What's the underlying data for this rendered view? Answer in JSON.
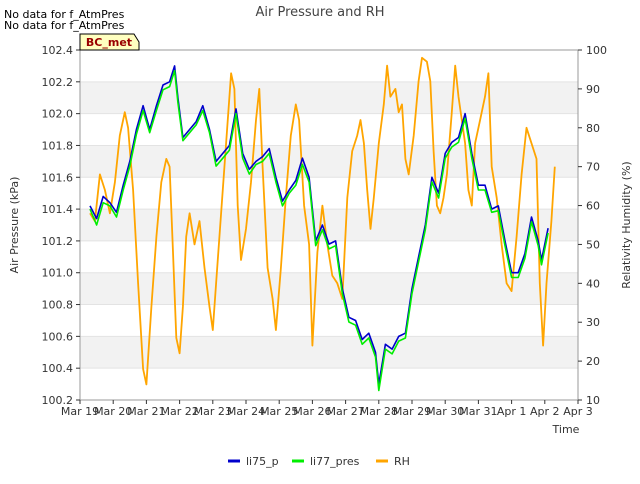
{
  "no_data_notes": [
    "No data for f_AtmPres",
    "No data for f_AtmPres"
  ],
  "station_badge": "BC_met",
  "chart_data": {
    "type": "line",
    "title": "Air Pressure and RH",
    "xlabel": "Time",
    "ylabel_left": "Air Pressure (kPa)",
    "ylabel_right": "Relativity Humidity (%)",
    "x_range": [
      0,
      15
    ],
    "ylim_left": [
      100.2,
      102.4
    ],
    "ylim_right": [
      10,
      100
    ],
    "x_ticks": [
      {
        "label": "Mar 19",
        "x": 0
      },
      {
        "label": "Mar 20",
        "x": 1
      },
      {
        "label": "Mar 21",
        "x": 2
      },
      {
        "label": "Mar 22",
        "x": 3
      },
      {
        "label": "Mar 23",
        "x": 4
      },
      {
        "label": "Mar 24",
        "x": 5
      },
      {
        "label": "Mar 25",
        "x": 6
      },
      {
        "label": "Mar 26",
        "x": 7
      },
      {
        "label": "Mar 27",
        "x": 8
      },
      {
        "label": "Mar 28",
        "x": 9
      },
      {
        "label": "Mar 29",
        "x": 10
      },
      {
        "label": "Mar 30",
        "x": 11
      },
      {
        "label": "Mar 31",
        "x": 12
      },
      {
        "label": "Apr 1",
        "x": 13
      },
      {
        "label": "Apr 2",
        "x": 14
      },
      {
        "label": "Apr 3",
        "x": 15
      }
    ],
    "y_ticks_left": [
      "100.2",
      "100.4",
      "100.6",
      "100.8",
      "101.0",
      "101.2",
      "101.4",
      "101.6",
      "101.8",
      "102.0",
      "102.2",
      "102.4"
    ],
    "y_ticks_right": [
      "10",
      "20",
      "30",
      "40",
      "50",
      "60",
      "70",
      "80",
      "90",
      "100"
    ],
    "grid": "horizontal bands",
    "legend_placement": "bottom-center",
    "colors": {
      "li75_p": "#0000cc",
      "li77_pres": "#00ee00",
      "RH": "#ffa500",
      "band": "#f2f2f2"
    },
    "series": [
      {
        "name": "li75_p",
        "axis": "left",
        "points": [
          [
            0.3,
            101.42
          ],
          [
            0.5,
            101.34
          ],
          [
            0.7,
            101.48
          ],
          [
            0.9,
            101.44
          ],
          [
            1.1,
            101.38
          ],
          [
            1.3,
            101.55
          ],
          [
            1.5,
            101.7
          ],
          [
            1.7,
            101.9
          ],
          [
            1.9,
            102.05
          ],
          [
            2.1,
            101.9
          ],
          [
            2.3,
            102.05
          ],
          [
            2.5,
            102.18
          ],
          [
            2.7,
            102.2
          ],
          [
            2.85,
            102.3
          ],
          [
            2.95,
            102.1
          ],
          [
            3.1,
            101.85
          ],
          [
            3.3,
            101.9
          ],
          [
            3.5,
            101.95
          ],
          [
            3.7,
            102.05
          ],
          [
            3.9,
            101.9
          ],
          [
            4.1,
            101.7
          ],
          [
            4.3,
            101.75
          ],
          [
            4.5,
            101.8
          ],
          [
            4.7,
            102.03
          ],
          [
            4.9,
            101.75
          ],
          [
            5.1,
            101.65
          ],
          [
            5.3,
            101.7
          ],
          [
            5.5,
            101.73
          ],
          [
            5.7,
            101.78
          ],
          [
            5.9,
            101.6
          ],
          [
            6.1,
            101.45
          ],
          [
            6.3,
            101.52
          ],
          [
            6.5,
            101.58
          ],
          [
            6.7,
            101.72
          ],
          [
            6.9,
            101.6
          ],
          [
            7.1,
            101.2
          ],
          [
            7.3,
            101.3
          ],
          [
            7.5,
            101.18
          ],
          [
            7.7,
            101.2
          ],
          [
            7.9,
            100.9
          ],
          [
            8.1,
            100.72
          ],
          [
            8.3,
            100.7
          ],
          [
            8.5,
            100.58
          ],
          [
            8.7,
            100.62
          ],
          [
            8.9,
            100.5
          ],
          [
            9.0,
            100.3
          ],
          [
            9.2,
            100.55
          ],
          [
            9.4,
            100.52
          ],
          [
            9.6,
            100.6
          ],
          [
            9.8,
            100.62
          ],
          [
            10.0,
            100.9
          ],
          [
            10.2,
            101.1
          ],
          [
            10.4,
            101.3
          ],
          [
            10.6,
            101.6
          ],
          [
            10.8,
            101.5
          ],
          [
            11.0,
            101.75
          ],
          [
            11.2,
            101.82
          ],
          [
            11.4,
            101.85
          ],
          [
            11.6,
            102.0
          ],
          [
            11.8,
            101.75
          ],
          [
            12.0,
            101.55
          ],
          [
            12.2,
            101.55
          ],
          [
            12.4,
            101.4
          ],
          [
            12.6,
            101.42
          ],
          [
            12.8,
            101.2
          ],
          [
            13.0,
            101.0
          ],
          [
            13.2,
            101.0
          ],
          [
            13.4,
            101.12
          ],
          [
            13.6,
            101.35
          ],
          [
            13.8,
            101.2
          ],
          [
            13.9,
            101.08
          ],
          [
            14.1,
            101.28
          ]
        ]
      },
      {
        "name": "li77_pres",
        "axis": "left",
        "points": [
          [
            0.3,
            101.4
          ],
          [
            0.5,
            101.3
          ],
          [
            0.7,
            101.44
          ],
          [
            0.9,
            101.42
          ],
          [
            1.1,
            101.35
          ],
          [
            1.3,
            101.52
          ],
          [
            1.5,
            101.67
          ],
          [
            1.7,
            101.87
          ],
          [
            1.9,
            102.02
          ],
          [
            2.1,
            101.88
          ],
          [
            2.3,
            102.02
          ],
          [
            2.5,
            102.15
          ],
          [
            2.7,
            102.17
          ],
          [
            2.85,
            102.27
          ],
          [
            2.95,
            102.07
          ],
          [
            3.1,
            101.83
          ],
          [
            3.3,
            101.88
          ],
          [
            3.5,
            101.93
          ],
          [
            3.7,
            102.02
          ],
          [
            3.9,
            101.88
          ],
          [
            4.1,
            101.67
          ],
          [
            4.3,
            101.72
          ],
          [
            4.5,
            101.77
          ],
          [
            4.7,
            102.0
          ],
          [
            4.9,
            101.72
          ],
          [
            5.1,
            101.62
          ],
          [
            5.3,
            101.68
          ],
          [
            5.5,
            101.7
          ],
          [
            5.7,
            101.75
          ],
          [
            5.9,
            101.57
          ],
          [
            6.1,
            101.42
          ],
          [
            6.3,
            101.5
          ],
          [
            6.5,
            101.55
          ],
          [
            6.7,
            101.68
          ],
          [
            6.9,
            101.57
          ],
          [
            7.1,
            101.17
          ],
          [
            7.3,
            101.27
          ],
          [
            7.5,
            101.15
          ],
          [
            7.7,
            101.17
          ],
          [
            7.9,
            100.87
          ],
          [
            8.1,
            100.69
          ],
          [
            8.3,
            100.67
          ],
          [
            8.5,
            100.55
          ],
          [
            8.7,
            100.59
          ],
          [
            8.9,
            100.47
          ],
          [
            9.0,
            100.26
          ],
          [
            9.2,
            100.52
          ],
          [
            9.4,
            100.49
          ],
          [
            9.6,
            100.57
          ],
          [
            9.8,
            100.59
          ],
          [
            10.0,
            100.87
          ],
          [
            10.2,
            101.07
          ],
          [
            10.4,
            101.27
          ],
          [
            10.6,
            101.57
          ],
          [
            10.8,
            101.47
          ],
          [
            11.0,
            101.72
          ],
          [
            11.2,
            101.79
          ],
          [
            11.4,
            101.82
          ],
          [
            11.6,
            101.97
          ],
          [
            11.8,
            101.72
          ],
          [
            12.0,
            101.52
          ],
          [
            12.2,
            101.52
          ],
          [
            12.4,
            101.38
          ],
          [
            12.6,
            101.39
          ],
          [
            12.8,
            101.17
          ],
          [
            13.0,
            100.97
          ],
          [
            13.2,
            100.97
          ],
          [
            13.4,
            101.09
          ],
          [
            13.6,
            101.32
          ],
          [
            13.8,
            101.17
          ],
          [
            13.9,
            101.05
          ],
          [
            14.1,
            101.25
          ]
        ]
      },
      {
        "name": "RH",
        "axis": "right",
        "points": [
          [
            0.3,
            58
          ],
          [
            0.45,
            56
          ],
          [
            0.6,
            68
          ],
          [
            0.75,
            64
          ],
          [
            0.9,
            58
          ],
          [
            1.05,
            66
          ],
          [
            1.2,
            78
          ],
          [
            1.35,
            84
          ],
          [
            1.45,
            80
          ],
          [
            1.6,
            64
          ],
          [
            1.75,
            40
          ],
          [
            1.9,
            18
          ],
          [
            2.0,
            14
          ],
          [
            2.15,
            34
          ],
          [
            2.3,
            52
          ],
          [
            2.45,
            66
          ],
          [
            2.6,
            72
          ],
          [
            2.7,
            70
          ],
          [
            2.8,
            48
          ],
          [
            2.9,
            26
          ],
          [
            3.0,
            22
          ],
          [
            3.1,
            34
          ],
          [
            3.2,
            52
          ],
          [
            3.3,
            58
          ],
          [
            3.45,
            50
          ],
          [
            3.6,
            56
          ],
          [
            3.75,
            44
          ],
          [
            3.9,
            34
          ],
          [
            4.0,
            28
          ],
          [
            4.1,
            40
          ],
          [
            4.25,
            58
          ],
          [
            4.4,
            76
          ],
          [
            4.55,
            94
          ],
          [
            4.65,
            90
          ],
          [
            4.75,
            60
          ],
          [
            4.85,
            46
          ],
          [
            5.0,
            54
          ],
          [
            5.15,
            66
          ],
          [
            5.3,
            82
          ],
          [
            5.4,
            90
          ],
          [
            5.5,
            70
          ],
          [
            5.65,
            44
          ],
          [
            5.8,
            36
          ],
          [
            5.9,
            28
          ],
          [
            6.05,
            44
          ],
          [
            6.2,
            62
          ],
          [
            6.35,
            78
          ],
          [
            6.5,
            86
          ],
          [
            6.6,
            82
          ],
          [
            6.75,
            60
          ],
          [
            6.9,
            50
          ],
          [
            7.0,
            24
          ],
          [
            7.15,
            48
          ],
          [
            7.3,
            60
          ],
          [
            7.45,
            50
          ],
          [
            7.6,
            42
          ],
          [
            7.75,
            40
          ],
          [
            7.9,
            36
          ],
          [
            8.05,
            62
          ],
          [
            8.2,
            74
          ],
          [
            8.35,
            78
          ],
          [
            8.45,
            82
          ],
          [
            8.55,
            76
          ],
          [
            8.65,
            64
          ],
          [
            8.75,
            54
          ],
          [
            8.85,
            62
          ],
          [
            9.0,
            76
          ],
          [
            9.15,
            86
          ],
          [
            9.25,
            96
          ],
          [
            9.35,
            88
          ],
          [
            9.5,
            90
          ],
          [
            9.6,
            84
          ],
          [
            9.7,
            86
          ],
          [
            9.8,
            72
          ],
          [
            9.9,
            68
          ],
          [
            10.05,
            78
          ],
          [
            10.2,
            92
          ],
          [
            10.3,
            98
          ],
          [
            10.45,
            97
          ],
          [
            10.55,
            92
          ],
          [
            10.65,
            74
          ],
          [
            10.75,
            60
          ],
          [
            10.85,
            58
          ],
          [
            10.95,
            62
          ],
          [
            11.05,
            68
          ],
          [
            11.2,
            84
          ],
          [
            11.3,
            96
          ],
          [
            11.4,
            88
          ],
          [
            11.5,
            82
          ],
          [
            11.6,
            76
          ],
          [
            11.7,
            64
          ],
          [
            11.8,
            60
          ],
          [
            11.9,
            76
          ],
          [
            12.05,
            82
          ],
          [
            12.2,
            88
          ],
          [
            12.3,
            94
          ],
          [
            12.4,
            70
          ],
          [
            12.55,
            62
          ],
          [
            12.7,
            50
          ],
          [
            12.85,
            40
          ],
          [
            13.0,
            38
          ],
          [
            13.15,
            52
          ],
          [
            13.3,
            68
          ],
          [
            13.45,
            80
          ],
          [
            13.6,
            76
          ],
          [
            13.75,
            72
          ],
          [
            13.85,
            40
          ],
          [
            13.95,
            24
          ],
          [
            14.05,
            40
          ],
          [
            14.2,
            56
          ],
          [
            14.3,
            70
          ]
        ]
      }
    ]
  }
}
